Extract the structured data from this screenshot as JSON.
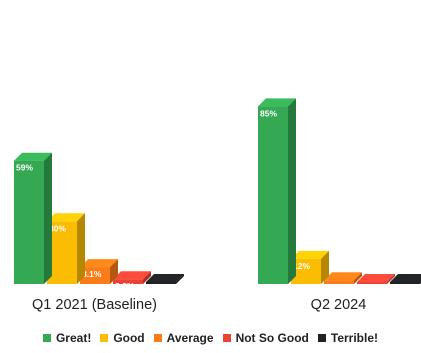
{
  "chart_data": {
    "type": "bar",
    "categories": [
      "Q1 2021 (Baseline)",
      "Q2 2024"
    ],
    "series": [
      {
        "name": "Great!",
        "color": "#34a853",
        "values": [
          59,
          85
        ],
        "labels": [
          "59%",
          "85%"
        ]
      },
      {
        "name": "Good",
        "color": "#fbbc04",
        "values": [
          30,
          12
        ],
        "labels": [
          "30%",
          "12%"
        ]
      },
      {
        "name": "Average",
        "color": "#fa7b17",
        "values": [
          8.1,
          1.8
        ],
        "labels": [
          "8.1%",
          "1.8%"
        ]
      },
      {
        "name": "Not So Good",
        "color": "#ea4335",
        "values": [
          2.3,
          0.8
        ],
        "labels": [
          "2.3%",
          ".8%"
        ]
      },
      {
        "name": "Terrible!",
        "color": "#202124",
        "values": [
          0.3,
          0.1
        ],
        "labels": [
          ".3%",
          ".1%"
        ]
      }
    ],
    "ylim": [
      0,
      100
    ],
    "grid": false,
    "legend_position": "bottom"
  }
}
